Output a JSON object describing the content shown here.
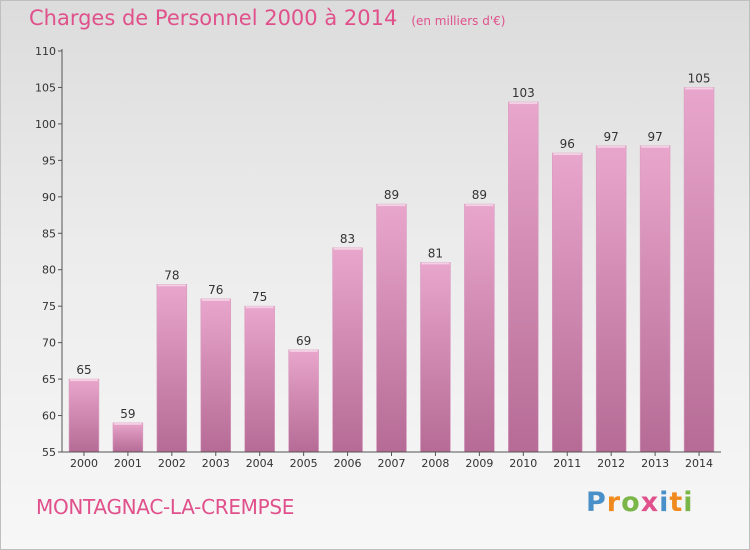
{
  "header": {
    "title": "Charges de Personnel 2000 à 2014",
    "subtitle": "(en milliers d'€)"
  },
  "footer": {
    "commune": "MONTAGNAC-LA-CREMPSE",
    "logo": "Proxiti",
    "logo_letters": [
      {
        "char": "P",
        "color": "#4a90c8"
      },
      {
        "char": "r",
        "color": "#f08a1e"
      },
      {
        "char": "o",
        "color": "#7ab648"
      },
      {
        "char": "x",
        "color": "#e0518c"
      },
      {
        "char": "i",
        "color": "#4a90c8"
      },
      {
        "char": "t",
        "color": "#f08a1e"
      },
      {
        "char": "i",
        "color": "#7ab648"
      }
    ]
  },
  "colors": {
    "accent": "#e0518c",
    "bar_top": "#e9a6cc",
    "bar_bottom": "#b56b95"
  },
  "chart_data": {
    "type": "bar",
    "categories": [
      "2000",
      "2001",
      "2002",
      "2003",
      "2004",
      "2005",
      "2006",
      "2007",
      "2008",
      "2009",
      "2010",
      "2011",
      "2012",
      "2013",
      "2014"
    ],
    "values": [
      65,
      59,
      78,
      76,
      75,
      69,
      83,
      89,
      81,
      89,
      103,
      96,
      97,
      97,
      105
    ],
    "ylim": [
      55,
      110
    ],
    "yticks": [
      55,
      60,
      65,
      70,
      75,
      80,
      85,
      90,
      95,
      100,
      105,
      110
    ],
    "grid": false,
    "data_labels": true
  }
}
